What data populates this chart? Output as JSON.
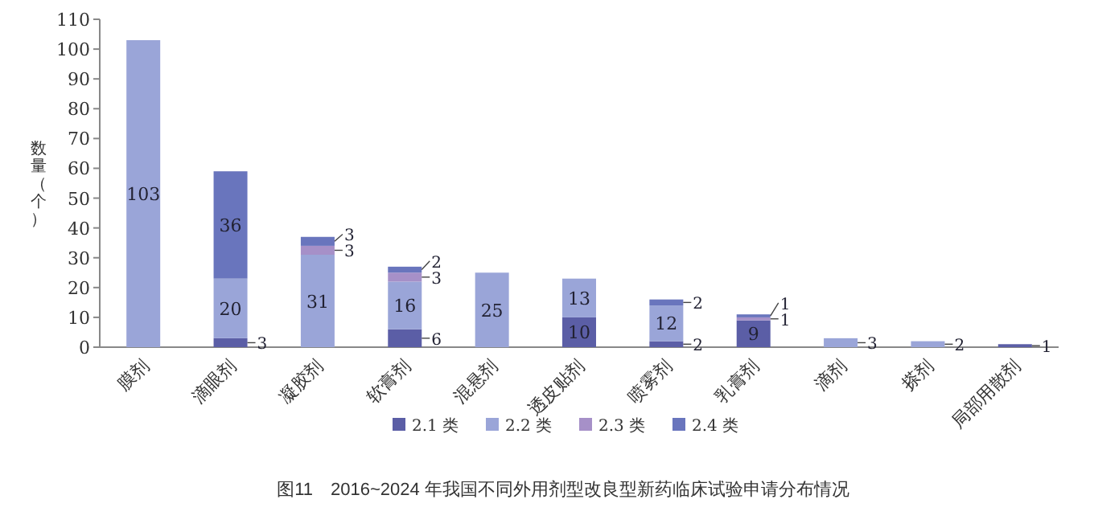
{
  "chart_data": {
    "type": "bar",
    "stacked": true,
    "ylabel": "数量（个）",
    "categories": [
      "膜剂",
      "滴眼剂",
      "凝胶剂",
      "软膏剂",
      "混悬剂",
      "透皮贴剂",
      "喷雾剂",
      "乳膏剂",
      "滴剂",
      "搽剂",
      "局部用散剂"
    ],
    "series": [
      {
        "name": "2.1 类",
        "color": "#5b5ea6",
        "values": [
          null,
          3,
          null,
          6,
          null,
          10,
          2,
          9,
          null,
          null,
          1
        ]
      },
      {
        "name": "2.2 类",
        "color": "#9aa5d8",
        "values": [
          103,
          20,
          31,
          16,
          25,
          13,
          12,
          null,
          3,
          2,
          null
        ]
      },
      {
        "name": "2.3 类",
        "color": "#a690c8",
        "values": [
          null,
          null,
          3,
          3,
          null,
          null,
          null,
          1,
          null,
          null,
          null
        ]
      },
      {
        "name": "2.4 类",
        "color": "#6975bd",
        "values": [
          null,
          36,
          3,
          2,
          null,
          null,
          2,
          1,
          null,
          null,
          null
        ]
      }
    ],
    "ylim": [
      0,
      110
    ],
    "yticks": [
      0,
      10,
      20,
      30,
      40,
      50,
      60,
      70,
      80,
      90,
      100,
      110
    ],
    "data_labels": true,
    "grid": false,
    "legend": "bottom",
    "annotations": [
      "图11　2016~2024 年我国不同外用剂型改良型新药临床试验申请分布情况"
    ]
  }
}
